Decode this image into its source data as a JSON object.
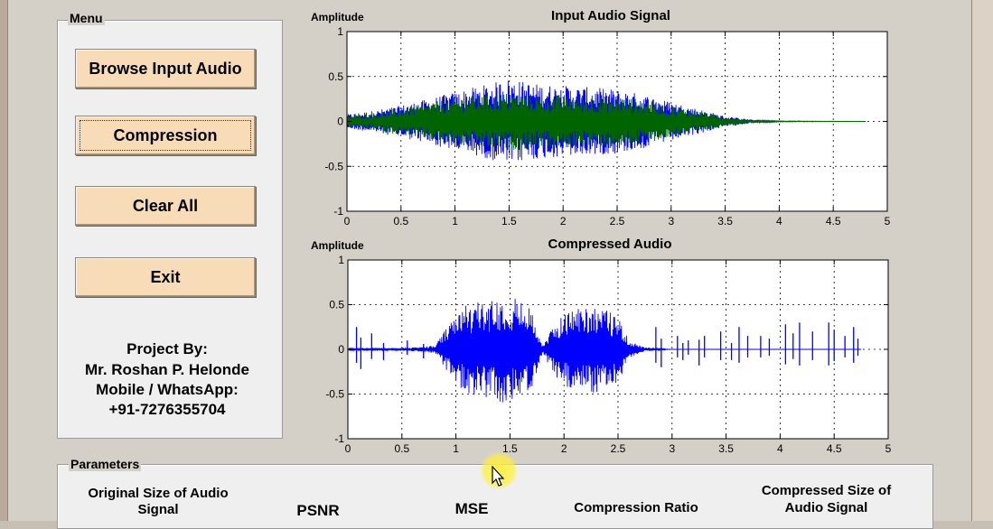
{
  "menu": {
    "title": "Menu",
    "buttons": {
      "browse": "Browse Input Audio",
      "compression": "Compression",
      "clear": "Clear All",
      "exit": "Exit"
    },
    "credits": {
      "line1": "Project By:",
      "line2": "Mr. Roshan P. Helonde",
      "line3": "Mobile / WhatsApp:",
      "line4": "+91-7276355704"
    }
  },
  "parameters": {
    "title": "Parameters",
    "original_size_line1": "Original Size of Audio",
    "original_size_line2": "Signal",
    "psnr": "PSNR",
    "mse": "MSE",
    "compression_ratio": "Compression Ratio",
    "compressed_size_line1": "Compressed Size of",
    "compressed_size_line2": "Audio Signal"
  },
  "colors": {
    "input_series_1": "#0000ff",
    "input_series_2": "#006400",
    "compressed_series": "#0000ff",
    "button_face": "#f8dcb8"
  },
  "chart_data": [
    {
      "type": "line",
      "title": "Input Audio Signal",
      "ylabel": "Amplitude",
      "xlabel": "",
      "xlim": [
        0,
        5
      ],
      "ylim": [
        -1,
        1
      ],
      "xticks": [
        "0",
        "0.5",
        "1",
        "1.5",
        "2",
        "2.5",
        "3",
        "3.5",
        "4",
        "4.5",
        "5"
      ],
      "yticks": [
        "1",
        "0.5",
        "0",
        "-0.5",
        "-1"
      ],
      "grid": true,
      "envelope_x": [
        0,
        0.25,
        0.5,
        0.75,
        1.0,
        1.25,
        1.5,
        1.75,
        2.0,
        2.25,
        2.5,
        2.75,
        3.0,
        3.25,
        3.5,
        3.75,
        4.0,
        4.8
      ],
      "series": [
        {
          "envelope": [
            0.08,
            0.12,
            0.18,
            0.25,
            0.33,
            0.4,
            0.48,
            0.42,
            0.4,
            0.38,
            0.36,
            0.3,
            0.22,
            0.14,
            0.06,
            0.02,
            0.005,
            0.0
          ]
        },
        {
          "envelope": [
            0.06,
            0.1,
            0.15,
            0.2,
            0.27,
            0.3,
            0.32,
            0.3,
            0.3,
            0.28,
            0.28,
            0.24,
            0.18,
            0.12,
            0.05,
            0.015,
            0.003,
            0.0
          ]
        }
      ]
    },
    {
      "type": "line",
      "title": "Compressed Audio",
      "ylabel": "Amplitude",
      "xlabel": "",
      "xlim": [
        0,
        5
      ],
      "ylim": [
        -1,
        1
      ],
      "xticks": [
        "0",
        "0.5",
        "1",
        "1.5",
        "2",
        "2.5",
        "3",
        "3.5",
        "4",
        "4.5",
        "5"
      ],
      "yticks": [
        "1",
        "0.5",
        "0",
        "-0.5",
        "-1"
      ],
      "grid": true,
      "envelope_x": [
        0,
        0.5,
        0.8,
        0.95,
        1.1,
        1.3,
        1.5,
        1.7,
        1.8,
        1.95,
        2.1,
        2.3,
        2.5,
        2.6,
        2.75,
        3.0,
        4.75
      ],
      "series": [
        {
          "envelope": [
            0.01,
            0.01,
            0.04,
            0.3,
            0.5,
            0.55,
            0.62,
            0.45,
            0.05,
            0.35,
            0.48,
            0.5,
            0.38,
            0.1,
            0.02,
            0.0,
            0.0
          ]
        }
      ],
      "spikes": [
        {
          "x": 0.08,
          "y": 0.25
        },
        {
          "x": 0.12,
          "y": -0.22
        },
        {
          "x": 0.22,
          "y": 0.18
        },
        {
          "x": 0.33,
          "y": -0.12
        },
        {
          "x": 0.55,
          "y": 0.1
        },
        {
          "x": 0.7,
          "y": -0.1
        },
        {
          "x": 2.85,
          "y": 0.25
        },
        {
          "x": 2.9,
          "y": -0.2
        },
        {
          "x": 3.05,
          "y": 0.15
        },
        {
          "x": 3.1,
          "y": -0.12
        },
        {
          "x": 3.15,
          "y": 0.1
        },
        {
          "x": 3.25,
          "y": -0.18
        },
        {
          "x": 3.3,
          "y": 0.15
        },
        {
          "x": 3.45,
          "y": 0.2
        },
        {
          "x": 3.55,
          "y": -0.12
        },
        {
          "x": 3.62,
          "y": 0.25
        },
        {
          "x": 3.7,
          "y": 0.15
        },
        {
          "x": 3.82,
          "y": 0.15
        },
        {
          "x": 3.9,
          "y": 0.12
        },
        {
          "x": 4.05,
          "y": 0.28
        },
        {
          "x": 4.12,
          "y": 0.18
        },
        {
          "x": 4.18,
          "y": 0.3
        },
        {
          "x": 4.3,
          "y": 0.2
        },
        {
          "x": 4.45,
          "y": 0.3
        },
        {
          "x": 4.5,
          "y": 0.22
        },
        {
          "x": 4.6,
          "y": 0.15
        },
        {
          "x": 4.68,
          "y": 0.25
        },
        {
          "x": 4.72,
          "y": 0.12
        }
      ]
    }
  ]
}
